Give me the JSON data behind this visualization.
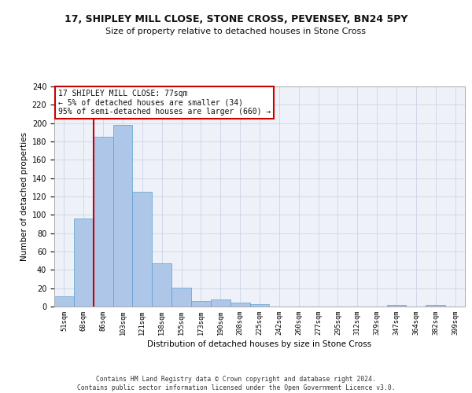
{
  "title1": "17, SHIPLEY MILL CLOSE, STONE CROSS, PEVENSEY, BN24 5PY",
  "title2": "Size of property relative to detached houses in Stone Cross",
  "xlabel": "Distribution of detached houses by size in Stone Cross",
  "ylabel": "Number of detached properties",
  "categories": [
    "51sqm",
    "68sqm",
    "86sqm",
    "103sqm",
    "121sqm",
    "138sqm",
    "155sqm",
    "173sqm",
    "190sqm",
    "208sqm",
    "225sqm",
    "242sqm",
    "260sqm",
    "277sqm",
    "295sqm",
    "312sqm",
    "329sqm",
    "347sqm",
    "364sqm",
    "382sqm",
    "399sqm"
  ],
  "values": [
    11,
    96,
    185,
    198,
    125,
    47,
    21,
    6,
    8,
    4,
    3,
    0,
    0,
    0,
    0,
    0,
    0,
    2,
    0,
    2,
    0
  ],
  "bar_color": "#aec6e8",
  "bar_edge_color": "#5a9fd4",
  "grid_color": "#d0d8e8",
  "bg_color": "#eef2f8",
  "vline_color": "#cc0000",
  "vline_pos": 1.5,
  "annotation_text": "17 SHIPLEY MILL CLOSE: 77sqm\n← 5% of detached houses are smaller (34)\n95% of semi-detached houses are larger (660) →",
  "annotation_box_color": "#ffffff",
  "annotation_box_edge": "#cc0000",
  "footer": "Contains HM Land Registry data © Crown copyright and database right 2024.\nContains public sector information licensed under the Open Government Licence v3.0.",
  "ylim": [
    0,
    240
  ],
  "yticks": [
    0,
    20,
    40,
    60,
    80,
    100,
    120,
    140,
    160,
    180,
    200,
    220,
    240
  ]
}
